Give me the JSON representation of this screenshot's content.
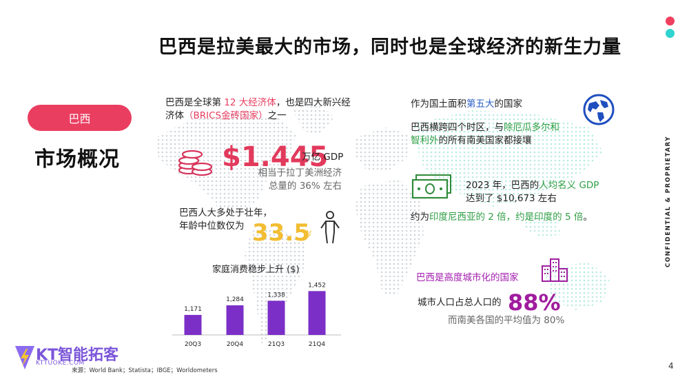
{
  "title": "巴西是拉美最大的市场，同时也是全球经济的新生力量",
  "section_pill": "巴西",
  "section_heading": "市场概况",
  "side_label": "CONFIDENTIAL & PROPRIETARY",
  "page_number": "4",
  "economy": {
    "line1_pre": "巴西是全球第 ",
    "line1_hl": "12 大经济体",
    "line1_post": "，也是四大新兴经",
    "line2_pre": "济体",
    "line2_hl": "（BRICS金砖国家）",
    "line2_post": "之一",
    "gdp_value": "$1.445",
    "gdp_unit": "万亿 GDP",
    "gdp_note1": "相当于拉丁美洲经济",
    "gdp_note2": "总量的 36% 左右"
  },
  "age": {
    "line1": "巴西人大多处于壮年，",
    "line2": "年龄中位数仅为",
    "value": "33.5",
    "unit": "岁"
  },
  "area": {
    "pre": "作为国土面积",
    "hl": "第五大",
    "post": "的国家",
    "tz_line1_pre": "巴西横跨四个时区，与",
    "tz_line1_hl": "除厄瓜多尔和",
    "tz_line2_hl": "智利外",
    "tz_line2_post": "的所有南美国家都接壤"
  },
  "gdp_per_capita": {
    "line1_pre": "2023 年，巴西的",
    "line1_hl": "人均名义 GDP",
    "line2": "达到了 $10,673 左右",
    "compare_pre": "约为",
    "compare_hl": "印度尼西亚的 2 倍，约是印度的 5 倍",
    "compare_post": "。"
  },
  "urban": {
    "headline": "巴西是高度城市化的国家",
    "line_pre": "城市人口占总人口的",
    "value": "88%",
    "note": "而南美各国的平均值为 80%"
  },
  "chart_data": {
    "type": "bar",
    "title": "家庭消费稳步上升 ($)",
    "categories": [
      "20Q3",
      "20Q4",
      "21Q3",
      "21Q4"
    ],
    "values": [
      1171,
      1284,
      1338,
      1452
    ],
    "value_labels": [
      "1,171",
      "1,284",
      "1,338",
      "1,452"
    ],
    "color": "#7b2fc7",
    "ylim": [
      0,
      1520
    ]
  },
  "source": "来源：World Bank；Statista；IBGE；Worldometers",
  "logo": {
    "name": "KT智能拓客",
    "domain": "KTTUOKE.COM"
  },
  "colors": {
    "accent_red": "#e63c5e",
    "accent_cyan": "#2fd3cf",
    "bar_purple": "#7b2fc7"
  }
}
